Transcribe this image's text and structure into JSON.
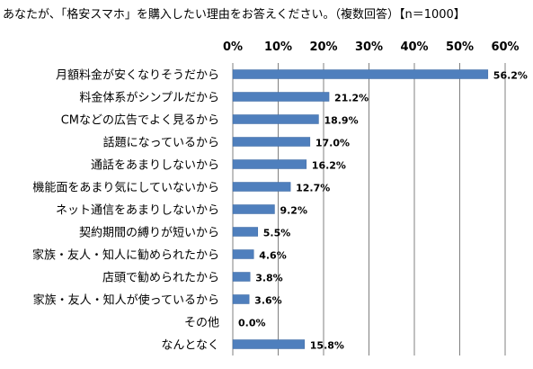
{
  "chart_data": {
    "type": "bar",
    "orientation": "horizontal",
    "title": "あなたが、「格安スマホ」を購入したい理由をお答えください。（複数回答）【n＝1000】",
    "categories": [
      "月額料金が安くなりそうだから",
      "料金体系がシンプルだから",
      "CMなどの広告でよく見るから",
      "話題になっているから",
      "通話をあまりしないから",
      "機能面をあまり気にしていないから",
      "ネット通信をあまりしないから",
      "契約期間の縛りが短いから",
      "家族・友人・知人に勧められたから",
      "店頭で勧められたから",
      "家族・友人・知人が使っているから",
      "その他",
      "なんとなく"
    ],
    "values": [
      56.2,
      21.2,
      18.9,
      17.0,
      16.2,
      12.7,
      9.2,
      5.5,
      4.6,
      3.8,
      3.6,
      0.0,
      15.8
    ],
    "value_labels": [
      "56.2%",
      "21.2%",
      "18.9%",
      "17.0%",
      "16.2%",
      "12.7%",
      "9.2%",
      "5.5%",
      "4.6%",
      "3.8%",
      "3.6%",
      "0.0%",
      "15.8%"
    ],
    "xlim": [
      0,
      60
    ],
    "xticks": [
      0,
      10,
      20,
      30,
      40,
      50,
      60
    ],
    "xtick_labels": [
      "0%",
      "10%",
      "20%",
      "30%",
      "40%",
      "50%",
      "60%"
    ],
    "xlabel": "",
    "ylabel": "",
    "grid": "vertical",
    "legend": "none",
    "colors": {
      "bar": "#4f7fbd",
      "bar_edge": "#3f6aa3",
      "grid": "#808080",
      "text": "#000000"
    }
  }
}
